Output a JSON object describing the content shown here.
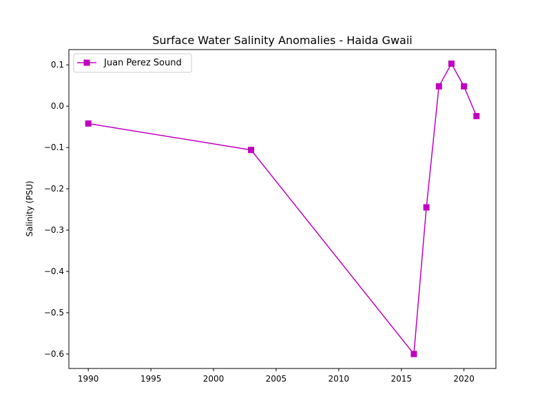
{
  "chart_data": {
    "type": "line",
    "title": "Surface Water Salinity Anomalies - Haida Gwaii",
    "xlabel": "",
    "ylabel": "Salinity (PSU)",
    "xlim": [
      1988.45,
      2022.55
    ],
    "ylim": [
      -0.635,
      0.137
    ],
    "x_ticks": [
      1990,
      1995,
      2000,
      2005,
      2010,
      2015,
      2020
    ],
    "y_ticks": [
      0.1,
      0.0,
      -0.1,
      -0.2,
      -0.3,
      -0.4,
      -0.5,
      -0.6
    ],
    "y_tick_labels": [
      "0.1",
      "0.0",
      "−0.1",
      "−0.2",
      "−0.3",
      "−0.4",
      "−0.5",
      "−0.6"
    ],
    "grid": false,
    "legend_position": "top-left",
    "series": [
      {
        "name": "Juan Perez Sound",
        "color": "#bf00bf",
        "marker": "square",
        "x": [
          1990,
          2003,
          2016,
          2017,
          2018,
          2019,
          2020,
          2021
        ],
        "y": [
          -0.042,
          -0.106,
          -0.6,
          -0.245,
          0.048,
          0.103,
          0.048,
          -0.024
        ]
      }
    ]
  }
}
